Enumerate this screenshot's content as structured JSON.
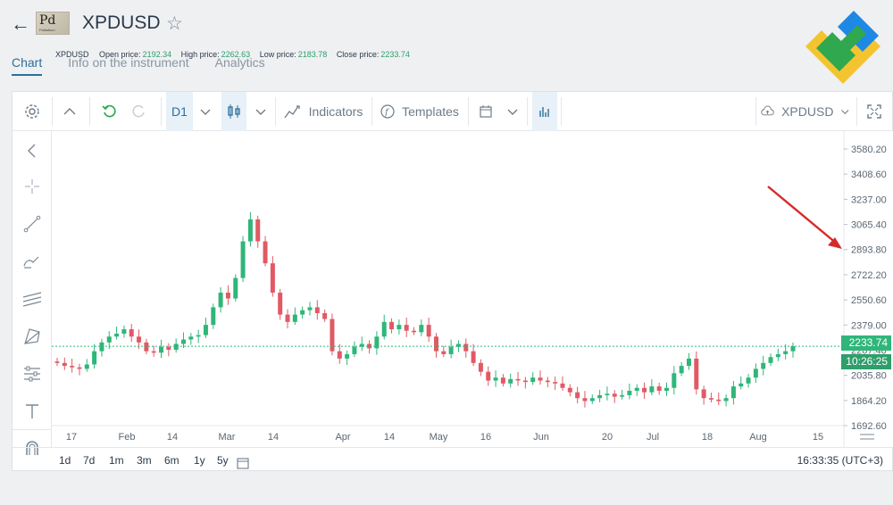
{
  "header": {
    "back_icon": "arrow-left-icon",
    "logo_symbol": "Pd",
    "logo_sub": "Palladium",
    "title": "XPDUSD",
    "star_icon": "star-icon",
    "tabs": [
      "Chart",
      "Info on the instrument",
      "Analytics"
    ],
    "active_tab": 0
  },
  "toolbar": {
    "timeframe": "D1",
    "indicators_label": "Indicators",
    "templates_label": "Templates",
    "symbol_label": "XPDUSD"
  },
  "ohlc": {
    "symbol": "XPDUSD",
    "open_label": "Open price:",
    "open": "2192.34",
    "high_label": "High price:",
    "high": "2262.63",
    "low_label": "Low price:",
    "low": "2183.78",
    "close_label": "Close price:",
    "close": "2233.74"
  },
  "ranges": [
    "1d",
    "7d",
    "1m",
    "3m",
    "6m",
    "1y",
    "5y"
  ],
  "clock": "16:33:35 (UTC+3)",
  "colors": {
    "up": "#2fb67a",
    "down": "#e05a66",
    "accent": "#2b6f9a",
    "arrow": "#d62a2a"
  },
  "chart_data": {
    "type": "candlestick",
    "y_ticks": [
      "3580.20",
      "3408.60",
      "3237.00",
      "3065.40",
      "2893.80",
      "2722.20",
      "2550.60",
      "2379.00",
      "2207.40",
      "2035.80",
      "1864.20",
      "1692.60"
    ],
    "ylim": [
      1692.6,
      3580.2
    ],
    "x_ticks": [
      "17",
      "Feb",
      "14",
      "Mar",
      "14",
      "Apr",
      "14",
      "May",
      "16",
      "Jun",
      "20",
      "Jul",
      "18",
      "Aug",
      "15"
    ],
    "last_price": "2233.74",
    "countdown": "10:26:25",
    "close_series": [
      2120,
      2100,
      2090,
      2080,
      2110,
      2200,
      2260,
      2300,
      2320,
      2350,
      2300,
      2260,
      2200,
      2190,
      2230,
      2210,
      2250,
      2280,
      2300,
      2310,
      2380,
      2500,
      2600,
      2560,
      2700,
      2950,
      3100,
      2950,
      2800,
      2600,
      2450,
      2400,
      2450,
      2480,
      2500,
      2460,
      2420,
      2200,
      2150,
      2180,
      2230,
      2250,
      2220,
      2300,
      2400,
      2350,
      2380,
      2340,
      2330,
      2380,
      2300,
      2200,
      2180,
      2230,
      2250,
      2200,
      2120,
      2060,
      2000,
      2020,
      1980,
      2010,
      2000,
      1990,
      2020,
      2000,
      1990,
      1980,
      1950,
      1920,
      1880,
      1860,
      1880,
      1900,
      1910,
      1890,
      1900,
      1930,
      1950,
      1920,
      1960,
      1930,
      1950,
      2050,
      2100,
      2150,
      1940,
      1880,
      1870,
      1860,
      1880,
      1960,
      1980,
      2020,
      2080,
      2120,
      2160,
      2180,
      2200,
      2234
    ]
  }
}
